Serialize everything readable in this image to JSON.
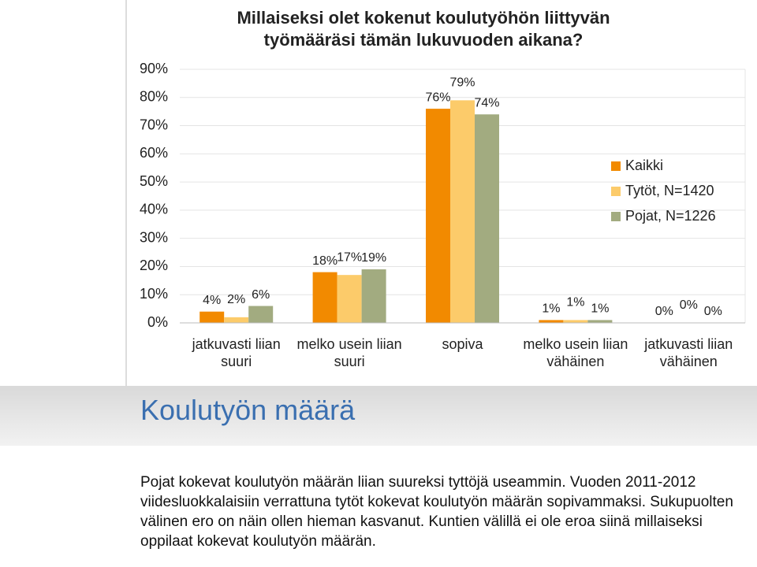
{
  "chart_data": {
    "type": "bar",
    "title": [
      "Millaiseksi olet kokenut koulutyöhön liittyvän",
      "työmääräsi tämän lukuvuoden aikana?"
    ],
    "categories": [
      "jatkuvasti liian suuri",
      "melko usein liian suuri",
      "sopiva",
      "melko usein liian vähäinen",
      "jatkuvasti liian vähäinen"
    ],
    "series": [
      {
        "name": "Kaikki",
        "color": "#f28a00",
        "values": [
          4,
          18,
          76,
          1,
          0
        ],
        "value_labels": [
          "4%",
          "18%",
          "76%",
          "1%",
          "0%"
        ]
      },
      {
        "name": "Tytöt, N=1420",
        "color": "#fccb6a",
        "values": [
          2,
          17,
          79,
          1,
          0
        ],
        "value_labels": [
          "2%",
          "17%",
          "79%",
          "1%",
          "0%"
        ]
      },
      {
        "name": "Pojat, N=1226",
        "color": "#a2ab80",
        "values": [
          6,
          19,
          74,
          1,
          0
        ],
        "value_labels": [
          "6%",
          "19%",
          "74%",
          "1%",
          "0%"
        ]
      }
    ],
    "ylim": [
      0,
      90
    ],
    "yticks": [
      {
        "value": 0,
        "label": "0%"
      },
      {
        "value": 10,
        "label": "10%"
      },
      {
        "value": 20,
        "label": "20%"
      },
      {
        "value": 30,
        "label": "30%"
      },
      {
        "value": 40,
        "label": "40%"
      },
      {
        "value": 50,
        "label": "50%"
      },
      {
        "value": 60,
        "label": "60%"
      },
      {
        "value": 70,
        "label": "70%"
      },
      {
        "value": 80,
        "label": "80%"
      },
      {
        "value": 90,
        "label": "90%"
      }
    ],
    "grid": true,
    "legend": "right"
  },
  "heading": "Koulutyön määrä",
  "body": "Pojat kokevat koulutyön määrän liian suureksi tyttöjä useammin. Vuoden 2011-2012 viidesluokkalaisiin verrattuna tytöt kokevat koulutyön määrän sopivammaksi. Sukupuolten välinen ero on näin ollen hieman kasvanut. Kuntien välillä ei ole eroa siinä millaiseksi oppilaat kokevat koulutyön määrän."
}
